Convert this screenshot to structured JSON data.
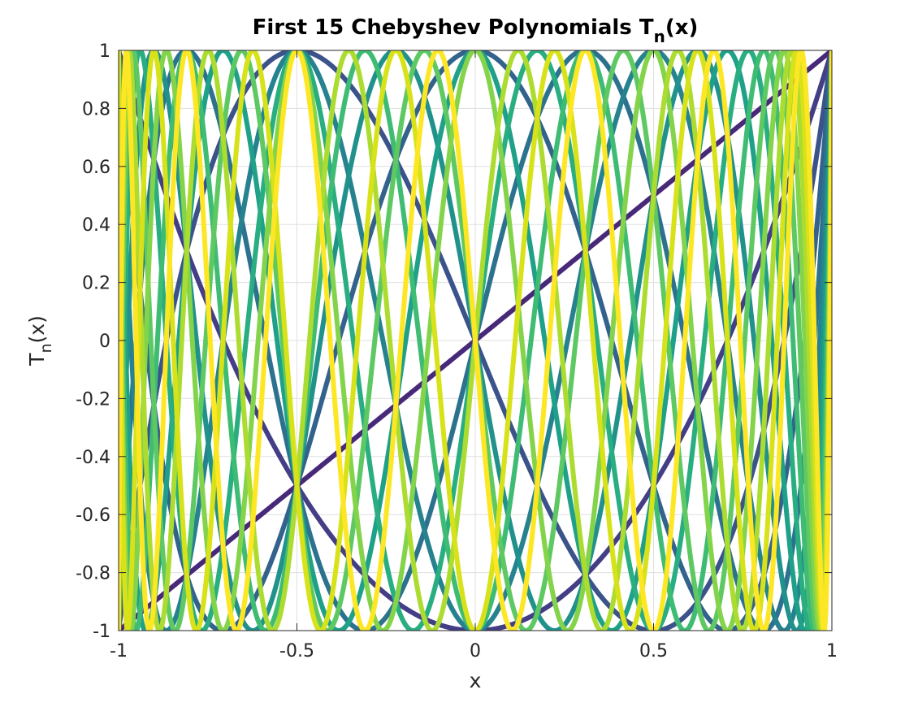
{
  "chart_data": {
    "type": "line",
    "title_main": "First 15 Chebyshev Polynomials T",
    "title_sub": "n",
    "title_tail": "(x)",
    "xlabel": "x",
    "ylabel_main": "T",
    "ylabel_sub": "n",
    "ylabel_tail": "(x)",
    "xlim": [
      -1,
      1
    ],
    "ylim": [
      -1,
      1
    ],
    "xticks": [
      -1,
      -0.5,
      0,
      0.5,
      1
    ],
    "xtick_labels": [
      "-1",
      "-0.5",
      "0",
      "0.5",
      "1"
    ],
    "yticks": [
      -1,
      -0.8,
      -0.6,
      -0.4,
      -0.2,
      0,
      0.2,
      0.4,
      0.6,
      0.8,
      1
    ],
    "ytick_labels": [
      "-1",
      "-0.8",
      "-0.6",
      "-0.4",
      "-0.2",
      "0",
      "0.2",
      "0.4",
      "0.6",
      "0.8",
      "1"
    ],
    "grid": true,
    "box": true,
    "series": [
      {
        "degree": 1,
        "function": "cos(1·arccos x)",
        "color": "#482878"
      },
      {
        "degree": 2,
        "function": "cos(2·arccos x)",
        "color": "#433e85"
      },
      {
        "degree": 3,
        "function": "cos(3·arccos x)",
        "color": "#3b528b"
      },
      {
        "degree": 4,
        "function": "cos(4·arccos x)",
        "color": "#33638d"
      },
      {
        "degree": 5,
        "function": "cos(5·arccos x)",
        "color": "#2c728e"
      },
      {
        "degree": 6,
        "function": "cos(6·arccos x)",
        "color": "#26828e"
      },
      {
        "degree": 7,
        "function": "cos(7·arccos x)",
        "color": "#21918c"
      },
      {
        "degree": 8,
        "function": "cos(8·arccos x)",
        "color": "#1fa088"
      },
      {
        "degree": 9,
        "function": "cos(9·arccos x)",
        "color": "#28ae80"
      },
      {
        "degree": 10,
        "function": "cos(10·arccos x)",
        "color": "#3fbc73"
      },
      {
        "degree": 11,
        "function": "cos(11·arccos x)",
        "color": "#5ec962"
      },
      {
        "degree": 12,
        "function": "cos(12·arccos x)",
        "color": "#84d44b"
      },
      {
        "degree": 13,
        "function": "cos(13·arccos x)",
        "color": "#addc30"
      },
      {
        "degree": 14,
        "function": "cos(14·arccos x)",
        "color": "#d8e219"
      },
      {
        "degree": 15,
        "function": "cos(15·arccos x)",
        "color": "#fde725"
      }
    ]
  }
}
